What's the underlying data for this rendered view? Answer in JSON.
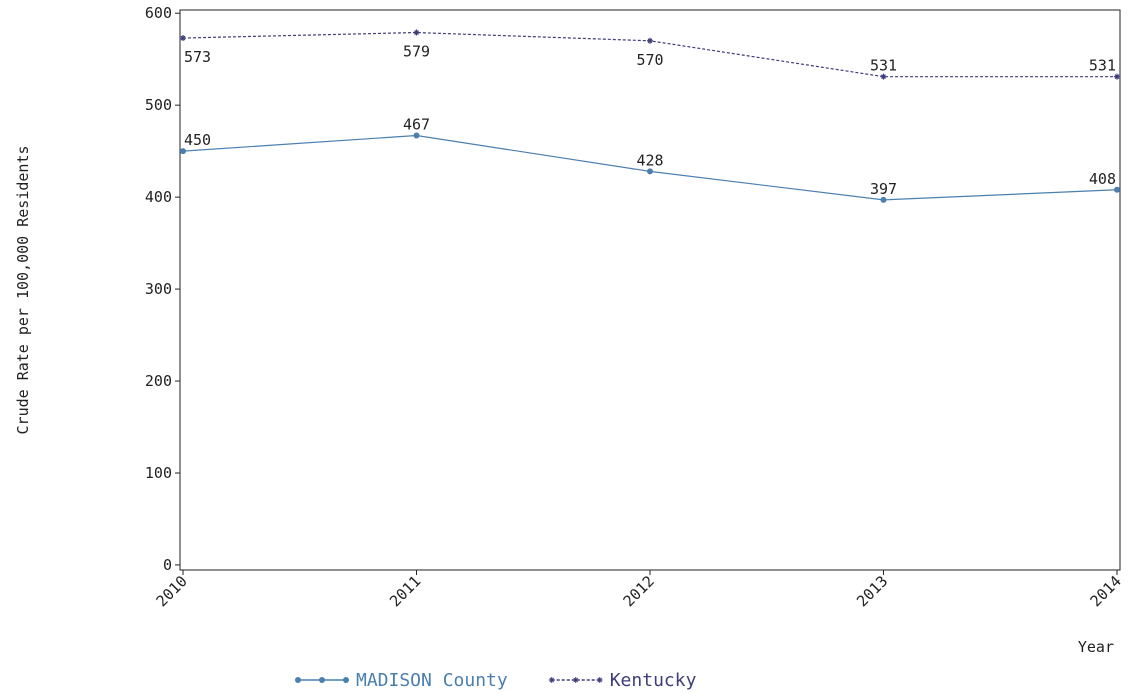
{
  "chart_data": {
    "type": "line",
    "y_label": "Crude Rate per 100,000 Residents",
    "x_label": "Year",
    "categories": [
      "2010",
      "2011",
      "2012",
      "2013",
      "2014"
    ],
    "series": [
      {
        "name": "MADISON County",
        "color": "#4a7fb0",
        "values": [
          450,
          467,
          428,
          397,
          408
        ]
      },
      {
        "name": "Kentucky",
        "color": "#3e3d7a",
        "values": [
          573,
          579,
          570,
          531,
          531
        ]
      }
    ],
    "ylim": [
      -5.5,
      603.5
    ],
    "yticks": [
      0,
      100,
      200,
      300,
      400,
      500,
      600
    ],
    "legend": "bottom"
  }
}
